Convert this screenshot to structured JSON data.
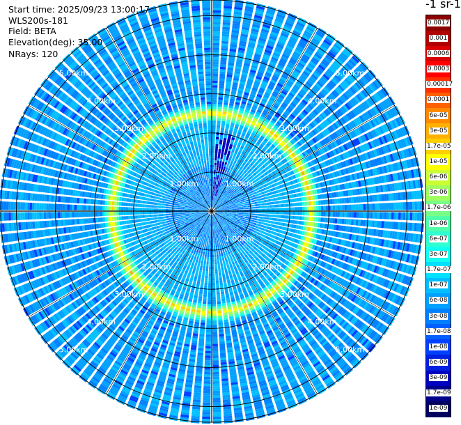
{
  "header": {
    "start_time": "Start time: 2025/09/23 13:00:17",
    "instrument": "WLS200s-181",
    "field": "Field: BETA",
    "elevation": "Elevation(deg): 35.00",
    "nrays": "NRays: 120"
  },
  "colorbar": {
    "unit_label": "-1 sr-1",
    "levels": [
      {
        "label": "0.0017",
        "color": "#8b0000"
      },
      {
        "label": "0.001",
        "color": "#b00000"
      },
      {
        "label": "0.0006",
        "color": "#d80000"
      },
      {
        "label": "0.0003",
        "color": "#ff0000"
      },
      {
        "label": "0.00017",
        "color": "#ff3000"
      },
      {
        "label": "0.0001",
        "color": "#ff6000"
      },
      {
        "label": "6e-05",
        "color": "#ff8a00"
      },
      {
        "label": "3e-05",
        "color": "#ffb000"
      },
      {
        "label": "1.7e-05",
        "color": "#ffd000"
      },
      {
        "label": "1e-05",
        "color": "#ffff00"
      },
      {
        "label": "6e-06",
        "color": "#ccff33"
      },
      {
        "label": "3e-06",
        "color": "#a0ff60"
      },
      {
        "label": "1.7e-06",
        "color": "#78ff88"
      },
      {
        "label": "1e-06",
        "color": "#50ffaa"
      },
      {
        "label": "6e-07",
        "color": "#30ffd0"
      },
      {
        "label": "3e-07",
        "color": "#10fff0"
      },
      {
        "label": "1.7e-07",
        "color": "#00e0ff"
      },
      {
        "label": "1e-07",
        "color": "#00bfff"
      },
      {
        "label": "6e-08",
        "color": "#00a0ff"
      },
      {
        "label": "3e-08",
        "color": "#0080ff"
      },
      {
        "label": "1.7e-08",
        "color": "#0060ff"
      },
      {
        "label": "1e-08",
        "color": "#0040ff"
      },
      {
        "label": "6e-09",
        "color": "#0020e0"
      },
      {
        "label": "3e-09",
        "color": "#0000c0"
      },
      {
        "label": "1.7e-09",
        "color": "#00008a"
      },
      {
        "label": "1e-09",
        "color": "#000060"
      }
    ]
  },
  "chart_data": {
    "type": "heatmap",
    "projection": "polar-ppi",
    "field": "BETA",
    "elevation_deg": 35.0,
    "n_rays": 120,
    "range_max_km": 5.4,
    "range_rings_km": [
      1.0,
      2.0,
      3.0,
      4.0,
      5.0
    ],
    "ring_labels": [
      "1.00km",
      "2.00km",
      "3.00km",
      "4.00km",
      "5.00km"
    ],
    "spoke_angles_deg": [
      0,
      30,
      60,
      90,
      120,
      150
    ],
    "background_level": "3e-08",
    "aerosol_layer": {
      "range_km_center": 2.55,
      "range_km_width": 0.5,
      "peak_level": "1.7e-05",
      "north_half_range_km": 2.5,
      "south_half_range_km": 2.6
    },
    "inner_region_level": "6e-08"
  }
}
